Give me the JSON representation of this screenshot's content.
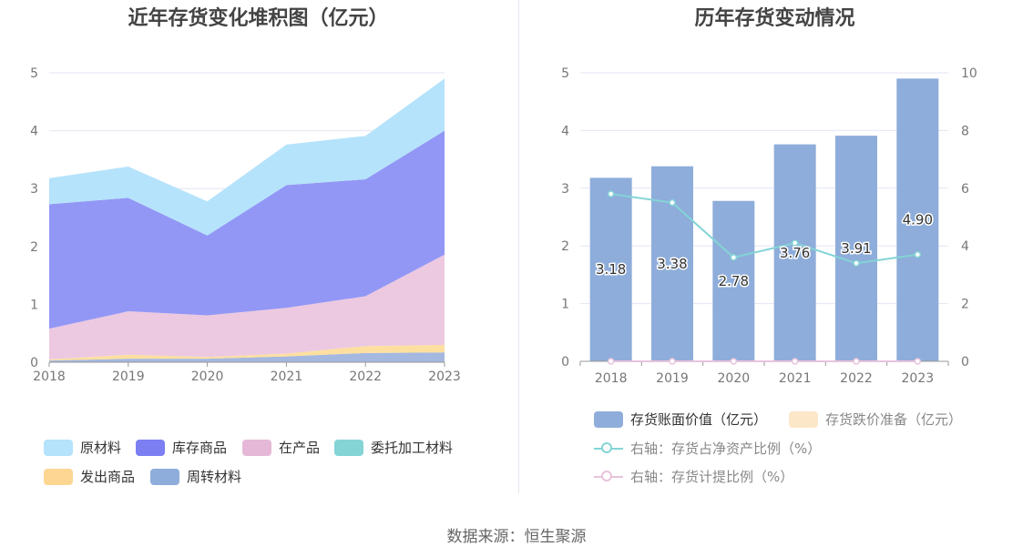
{
  "left_title": "近年存货变化堆积图（亿元）",
  "right_title": "历年存货变动情况",
  "source": "数据来源：恒生聚源",
  "colors": {
    "raw": "#b5e3fb",
    "finished": "#9297f5",
    "wip": "#ecc9e1",
    "outsourced": "#8fd3d6",
    "shipped": "#fddfa0",
    "turnover": "#a4b8e0",
    "bar": "#8eadda",
    "provision": "#fde7c9",
    "ratio_line": "#84d4d6",
    "provision_line": "#e8c3dc",
    "grid": "#e3e6f3",
    "axis_text": "#777777"
  },
  "chart_data": [
    {
      "type": "area",
      "stacked": true,
      "title": "近年存货变化堆积图（亿元）",
      "x": [
        "2018",
        "2019",
        "2020",
        "2021",
        "2022",
        "2023"
      ],
      "ylim": [
        0,
        5
      ],
      "yticks": [
        "0",
        "1",
        "2",
        "3",
        "4",
        "5"
      ],
      "series": [
        {
          "name": "周转材料",
          "key": "turnover",
          "values": [
            0.03,
            0.06,
            0.06,
            0.1,
            0.16,
            0.17
          ]
        },
        {
          "name": "发出商品",
          "key": "shipped",
          "values": [
            0.02,
            0.07,
            0.03,
            0.05,
            0.12,
            0.13
          ]
        },
        {
          "name": "委托加工材料",
          "key": "outsourced",
          "values": [
            0.0,
            0.0,
            0.0,
            0.0,
            0.0,
            0.0
          ]
        },
        {
          "name": "在产品",
          "key": "wip",
          "values": [
            0.53,
            0.75,
            0.72,
            0.79,
            0.86,
            1.56
          ]
        },
        {
          "name": "库存商品",
          "key": "finished",
          "values": [
            2.15,
            1.96,
            1.38,
            2.12,
            2.02,
            2.14
          ]
        },
        {
          "name": "原材料",
          "key": "raw",
          "values": [
            0.45,
            0.54,
            0.59,
            0.7,
            0.75,
            0.9
          ]
        }
      ],
      "legend": [
        {
          "label": "原材料",
          "key": "raw"
        },
        {
          "label": "库存商品",
          "key": "finished"
        },
        {
          "label": "在产品",
          "key": "wip"
        },
        {
          "label": "委托加工材料",
          "key": "outsourced"
        },
        {
          "label": "发出商品",
          "key": "shipped"
        },
        {
          "label": "周转材料",
          "key": "turnover"
        }
      ],
      "grid": true
    },
    {
      "type": "bar",
      "title": "历年存货变动情况",
      "categories": [
        "2018",
        "2019",
        "2020",
        "2021",
        "2022",
        "2023"
      ],
      "ylim": [
        0,
        5
      ],
      "yticks": [
        "0",
        "1",
        "2",
        "3",
        "4",
        "5"
      ],
      "y2lim": [
        0,
        10
      ],
      "y2ticks": [
        "0",
        "2",
        "4",
        "6",
        "8",
        "10"
      ],
      "series": [
        {
          "name": "存货账面价值（亿元）",
          "axis": "left",
          "type": "bar",
          "values": [
            3.18,
            3.38,
            2.78,
            3.76,
            3.91,
            4.9
          ],
          "labels": [
            "3.18",
            "3.38",
            "2.78",
            "3.76",
            "3.91",
            "4.90"
          ]
        },
        {
          "name": "存货跌价准备（亿元）",
          "axis": "left",
          "type": "bar",
          "values": [
            0,
            0,
            0,
            0,
            0,
            0
          ]
        },
        {
          "name": "右轴：存货占净资产比例（%）",
          "axis": "right",
          "type": "line",
          "values": [
            5.8,
            5.5,
            3.6,
            4.1,
            3.4,
            3.7
          ]
        },
        {
          "name": "右轴：存货计提比例（%）",
          "axis": "right",
          "type": "line",
          "values": [
            0,
            0,
            0,
            0,
            0,
            0
          ]
        }
      ],
      "grid": true
    }
  ]
}
